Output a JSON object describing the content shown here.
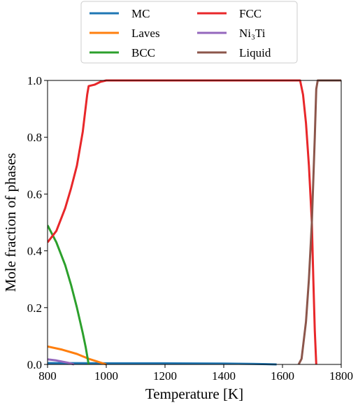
{
  "chart_data": {
    "type": "line",
    "title": "",
    "xlabel": "Temperature [K]",
    "ylabel": "Mole fraction of phases",
    "xlim": [
      800,
      1800
    ],
    "ylim": [
      0,
      1.0
    ],
    "xticks": [
      "800",
      "1000",
      "1200",
      "1400",
      "1600",
      "1800"
    ],
    "yticks": [
      "0.0",
      "0.2",
      "0.4",
      "0.6",
      "0.8",
      "1.0"
    ],
    "grid": false,
    "legend_position": "top-center, outside plot, two columns",
    "series": [
      {
        "name": "MC",
        "color": "#1f77b4",
        "points": [
          [
            800,
            0.005
          ],
          [
            1000,
            0.004
          ],
          [
            1200,
            0.004
          ],
          [
            1400,
            0.003
          ],
          [
            1500,
            0.002
          ],
          [
            1580,
            0.0
          ]
        ]
      },
      {
        "name": "Laves",
        "color": "#ff7f0e",
        "points": [
          [
            800,
            0.063
          ],
          [
            850,
            0.052
          ],
          [
            900,
            0.037
          ],
          [
            940,
            0.02
          ],
          [
            970,
            0.01
          ],
          [
            1000,
            0.0
          ]
        ]
      },
      {
        "name": "BCC",
        "color": "#2ca02c",
        "points": [
          [
            800,
            0.49
          ],
          [
            830,
            0.43
          ],
          [
            860,
            0.35
          ],
          [
            880,
            0.28
          ],
          [
            900,
            0.2
          ],
          [
            920,
            0.11
          ],
          [
            930,
            0.06
          ],
          [
            940,
            0.0
          ]
        ]
      },
      {
        "name": "FCC",
        "color": "#e8272a",
        "points": [
          [
            800,
            0.43
          ],
          [
            830,
            0.47
          ],
          [
            860,
            0.55
          ],
          [
            880,
            0.62
          ],
          [
            900,
            0.7
          ],
          [
            920,
            0.82
          ],
          [
            935,
            0.95
          ],
          [
            940,
            0.98
          ],
          [
            960,
            0.985
          ],
          [
            980,
            0.995
          ],
          [
            1000,
            1.0
          ],
          [
            1660,
            1.0
          ],
          [
            1670,
            0.95
          ],
          [
            1680,
            0.85
          ],
          [
            1690,
            0.7
          ],
          [
            1700,
            0.5
          ],
          [
            1705,
            0.3
          ],
          [
            1710,
            0.12
          ],
          [
            1715,
            0.0
          ]
        ]
      },
      {
        "name": "Ni₃Ti",
        "color": "#9467bd",
        "points": [
          [
            800,
            0.018
          ],
          [
            830,
            0.014
          ],
          [
            870,
            0.006
          ],
          [
            890,
            0.0
          ]
        ]
      },
      {
        "name": "Liquid",
        "color": "#8c564b",
        "points": [
          [
            1655,
            0.0
          ],
          [
            1665,
            0.02
          ],
          [
            1680,
            0.15
          ],
          [
            1690,
            0.3
          ],
          [
            1700,
            0.5
          ],
          [
            1705,
            0.65
          ],
          [
            1710,
            0.8
          ],
          [
            1715,
            0.97
          ],
          [
            1720,
            1.0
          ],
          [
            1800,
            1.0
          ]
        ]
      }
    ]
  }
}
